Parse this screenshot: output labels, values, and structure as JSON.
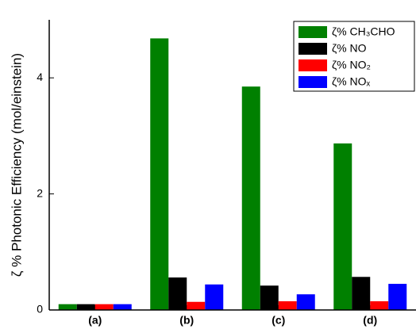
{
  "chart_data": {
    "type": "bar",
    "y_label": "ζ % Photonic Efficiency (mol/einstein)",
    "categories": [
      "(a)",
      "(b)",
      "(c)",
      "(d)"
    ],
    "series": [
      {
        "name": "ζ% CH₃CHO",
        "color": "#008000",
        "values": [
          0.1,
          4.68,
          3.85,
          2.87
        ]
      },
      {
        "name": "ζ% NO",
        "color": "#000000",
        "values": [
          0.1,
          0.56,
          0.42,
          0.57
        ]
      },
      {
        "name": "ζ% NO₂",
        "color": "#ff0000",
        "values": [
          0.1,
          0.14,
          0.15,
          0.15
        ]
      },
      {
        "name": "ζ% NOₓ",
        "color": "#0000ff",
        "values": [
          0.1,
          0.44,
          0.27,
          0.45
        ]
      }
    ],
    "ylim": [
      0,
      5
    ],
    "yticks": [
      0,
      2,
      4
    ],
    "legend": "upper right"
  }
}
